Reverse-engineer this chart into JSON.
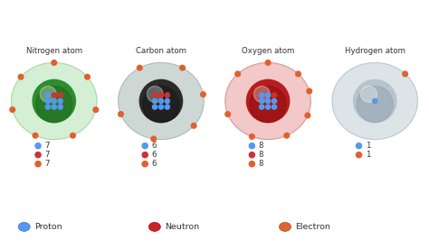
{
  "atoms": [
    {
      "name": "Nitrogen atom",
      "nucleus_color": "#2e8b2e",
      "nucleus_color2": "#1a5c1a",
      "shell_color": "#d4efd4",
      "shell_edge_color": "#a8d8a8",
      "protons": 7,
      "neutrons": 7,
      "electrons": 7,
      "show_neutron_row": true,
      "electron_angles": [
        90,
        141,
        193,
        244,
        296,
        347,
        39
      ]
    },
    {
      "name": "Carbon atom",
      "nucleus_color": "#2a2a2a",
      "nucleus_color2": "#111111",
      "shell_color": "#cdd8d5",
      "shell_edge_color": "#a8bcb8",
      "protons": 6,
      "neutrons": 6,
      "electrons": 6,
      "show_neutron_row": true,
      "electron_angles": [
        60,
        120,
        200,
        260,
        320,
        10
      ]
    },
    {
      "name": "Oxygen atom",
      "nucleus_color": "#b81c1c",
      "nucleus_color2": "#7a0f0f",
      "shell_color": "#f2c8c8",
      "shell_edge_color": "#d89898",
      "protons": 8,
      "neutrons": 8,
      "electrons": 8,
      "show_neutron_row": true,
      "electron_angles": [
        45,
        90,
        135,
        200,
        248,
        296,
        338,
        15
      ]
    },
    {
      "name": "Hydrogen atom",
      "nucleus_color": "#b8c4cc",
      "nucleus_color2": "#8899a8",
      "shell_color": "#dde4e8",
      "shell_edge_color": "#b8c8d0",
      "protons": 1,
      "neutrons": 0,
      "electrons": 1,
      "show_neutron_row": false,
      "electron_angles": [
        45
      ]
    }
  ],
  "legend": [
    {
      "label": "Proton",
      "color": "#5599ee",
      "edge": "#3377cc"
    },
    {
      "label": "Neutron",
      "color": "#cc2222",
      "edge": "#991111"
    },
    {
      "label": "Electron",
      "color": "#dd6633",
      "edge": "#bb4411"
    }
  ],
  "bg_color": "#ffffff",
  "text_color": "#333333",
  "proton_color": "#5599ee",
  "proton_edge": "#3377cc",
  "neutron_color": "#cc3333",
  "neutron_edge": "#991111",
  "electron_color": "#e06030",
  "electron_edge": "#bb4411"
}
